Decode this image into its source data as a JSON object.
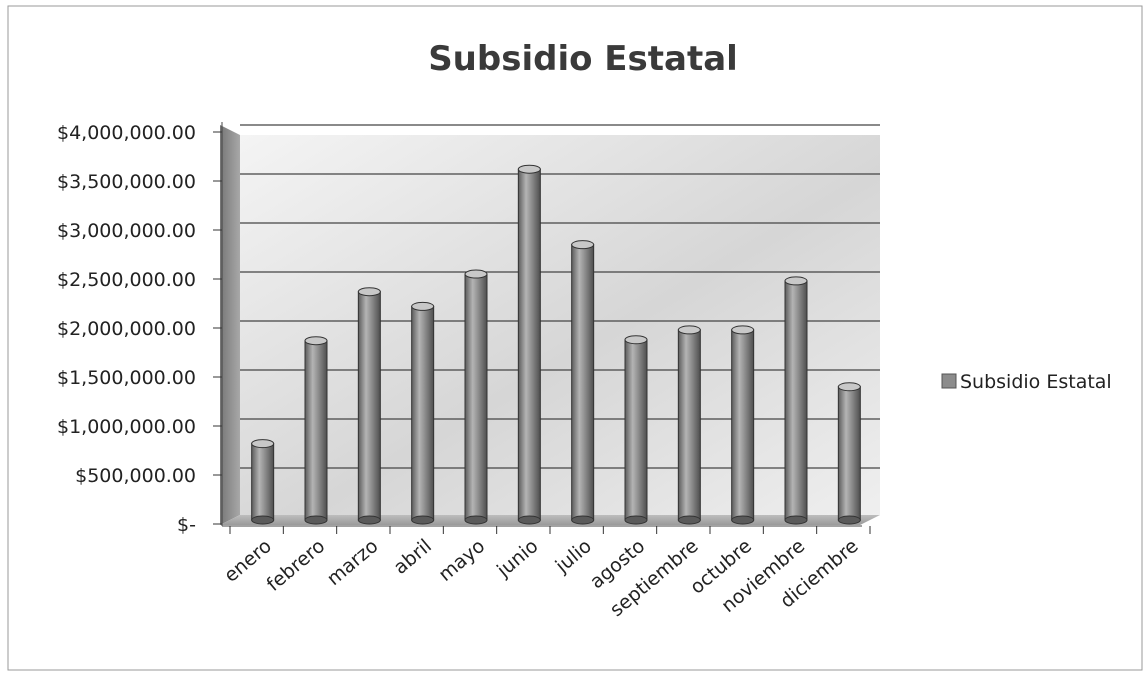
{
  "chart_data": {
    "type": "bar",
    "title": "Subsidio Estatal",
    "xlabel": "",
    "ylabel": "",
    "categories": [
      "enero",
      "febrero",
      "marzo",
      "abril",
      "mayo",
      "junio",
      "julio",
      "agosto",
      "septiembre",
      "octubre",
      "noviembre",
      "diciembre"
    ],
    "series": [
      {
        "name": "Subsidio Estatal",
        "values": [
          800000,
          1850000,
          2350000,
          2200000,
          2530000,
          3600000,
          2830000,
          1860000,
          1960000,
          1960000,
          2460000,
          1380000
        ]
      }
    ],
    "ylim": [
      0,
      4000000
    ],
    "yticks": [
      {
        "value": 0,
        "label": "$-"
      },
      {
        "value": 500000,
        "label": "$500,000.00"
      },
      {
        "value": 1000000,
        "label": "$1,000,000.00"
      },
      {
        "value": 1500000,
        "label": "$1,500,000.00"
      },
      {
        "value": 2000000,
        "label": "$2,000,000.00"
      },
      {
        "value": 2500000,
        "label": "$2,500,000.00"
      },
      {
        "value": 3000000,
        "label": "$3,000,000.00"
      },
      {
        "value": 3500000,
        "label": "$3,500,000.00"
      },
      {
        "value": 4000000,
        "label": "$4,000,000.00"
      }
    ],
    "grid": true,
    "legend_position": "right",
    "bar_shape": "cylinder",
    "colors": {
      "bar": "#8c8c8c",
      "bar_dark": "#5a5a5a",
      "bar_light": "#c8c8c8",
      "grid": "#444444"
    }
  }
}
